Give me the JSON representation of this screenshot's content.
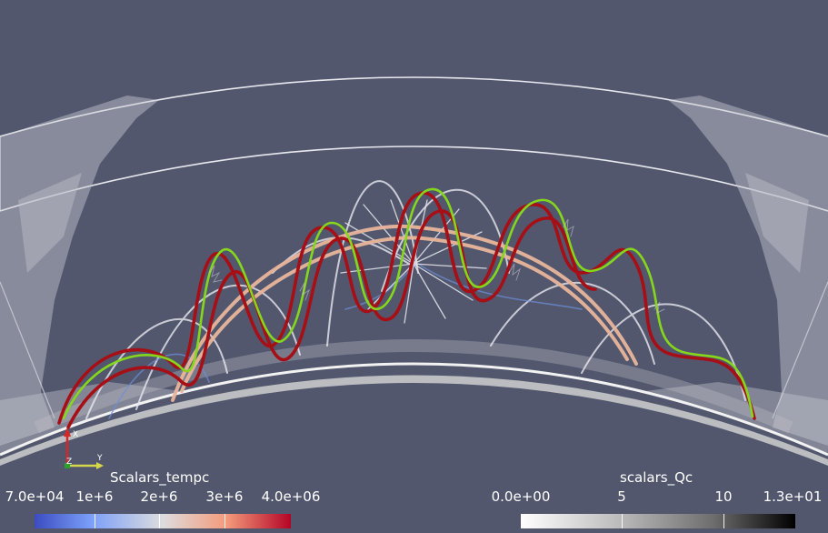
{
  "scene": {
    "background": "#52576e",
    "colors": {
      "red": "#a50f15",
      "green": "#86d61c",
      "peach": "#e8b59c",
      "white": "#e9e9ef",
      "blue": "#6f8fd8",
      "shell": "#dcdcdc"
    }
  },
  "axes": {
    "x": "X",
    "y": "Y",
    "z": "Z"
  },
  "colorbars": {
    "temp": {
      "title": "Scalars_tempc",
      "ticks": [
        "7.0e+04",
        "1e+6",
        "2e+6",
        "3e+6",
        "4.0e+06"
      ],
      "range": [
        70000,
        4000000
      ],
      "colormap": "coolwarm"
    },
    "qc": {
      "title": "scalars_Qc",
      "ticks": [
        "0.0e+00",
        "5",
        "10",
        "1.3e+01"
      ],
      "range": [
        0,
        13
      ],
      "colormap": "grayscale"
    }
  }
}
